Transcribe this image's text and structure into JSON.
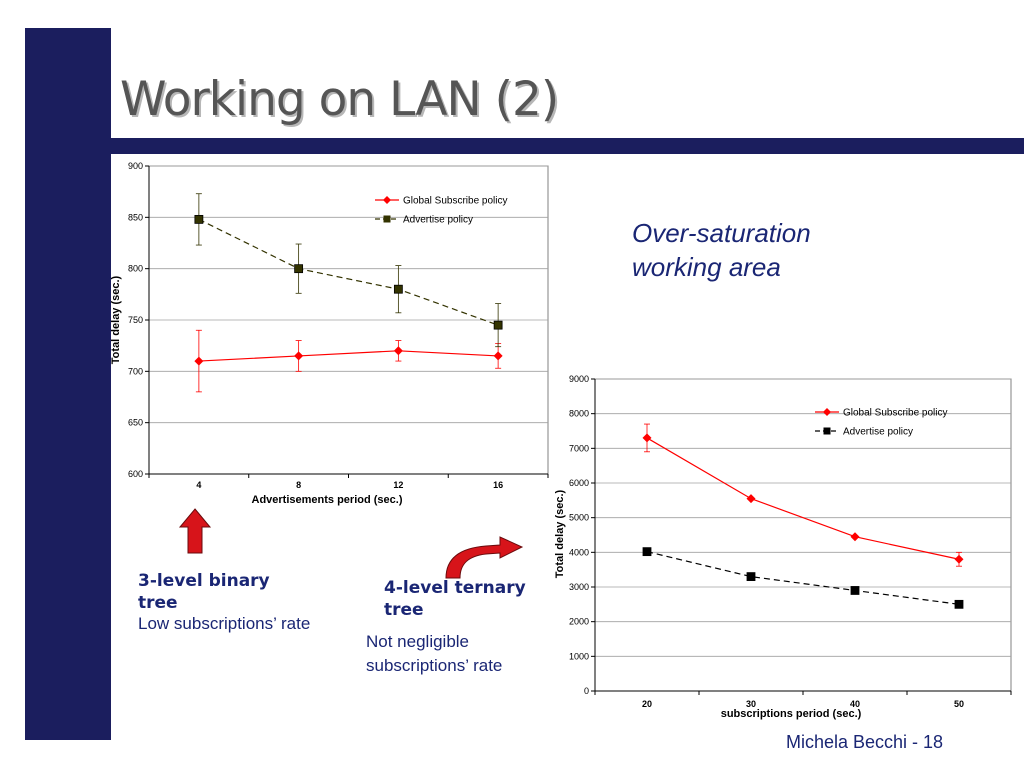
{
  "slide": {
    "title": "Working on LAN (2)",
    "footer": "Michela Becchi - 18",
    "colors": {
      "sidebar": "#1b1e5e",
      "text": "#1a2674",
      "arrow": "#d7141a"
    }
  },
  "annotations": {
    "oversaturation": [
      "Over-saturation",
      "working area"
    ],
    "binary_tree": {
      "title": "3-level binary tree",
      "subtitle": "Low subscriptions’ rate"
    },
    "ternary_tree": {
      "title": "4-level ternary tree",
      "subtitle": "Not negligible subscriptions’ rate"
    }
  },
  "chart_data": [
    {
      "type": "line",
      "title": "",
      "xlabel": "Advertisements  period (sec.)",
      "ylabel": "Total delay (sec.)",
      "categories": [
        "4",
        "8",
        "12",
        "16"
      ],
      "ylim": [
        600,
        900
      ],
      "yticks": [
        600,
        650,
        700,
        750,
        800,
        850,
        900
      ],
      "grid": true,
      "legend_position": "top-right",
      "series": [
        {
          "name": "Global Subscribe policy",
          "color": "#ff0000",
          "dash": false,
          "marker": "diamond",
          "values": [
            710,
            715,
            720,
            715
          ],
          "errors": [
            30,
            15,
            10,
            12
          ]
        },
        {
          "name": "Advertise policy",
          "color": "#333300",
          "dash": true,
          "marker": "square",
          "values": [
            848,
            800,
            780,
            745
          ],
          "errors": [
            25,
            24,
            23,
            21
          ]
        }
      ]
    },
    {
      "type": "line",
      "title": "",
      "xlabel": "subscriptions period (sec.)",
      "ylabel": "Total delay (sec.)",
      "categories": [
        "20",
        "30",
        "40",
        "50"
      ],
      "ylim": [
        0,
        9000
      ],
      "yticks": [
        0,
        1000,
        2000,
        3000,
        4000,
        5000,
        6000,
        7000,
        8000,
        9000
      ],
      "grid": true,
      "legend_position": "top-right",
      "series": [
        {
          "name": "Global Subscribe policy",
          "color": "#ff0000",
          "dash": false,
          "marker": "diamond",
          "values": [
            7300,
            5550,
            4450,
            3800
          ],
          "errors": [
            400,
            0,
            0,
            200
          ]
        },
        {
          "name": "Advertise policy",
          "color": "#000000",
          "dash": true,
          "marker": "square",
          "values": [
            4020,
            3300,
            2900,
            2500
          ],
          "errors": [
            0,
            0,
            0,
            0
          ]
        }
      ]
    }
  ]
}
